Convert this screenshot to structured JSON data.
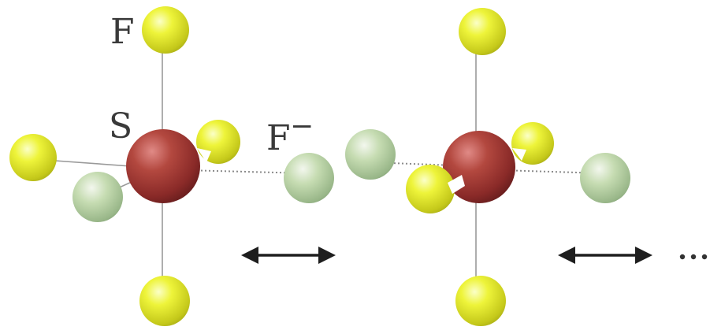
{
  "labels": {
    "fluorine": "F",
    "sulfur": "S",
    "fluoride_ion": "F",
    "charge": "−"
  },
  "colors": {
    "sulfur": "#a33d3b",
    "fluorine_bright": "#e9f02c",
    "fluorine_pale": "#bcd8a6",
    "bond": "#9a9a9a",
    "arrow": "#1e1e1e",
    "label": "#3a3a3a"
  },
  "structures": [
    {
      "name": "resonance-structure-1"
    },
    {
      "name": "resonance-structure-2"
    }
  ],
  "continuation": "more-resonance-structures"
}
